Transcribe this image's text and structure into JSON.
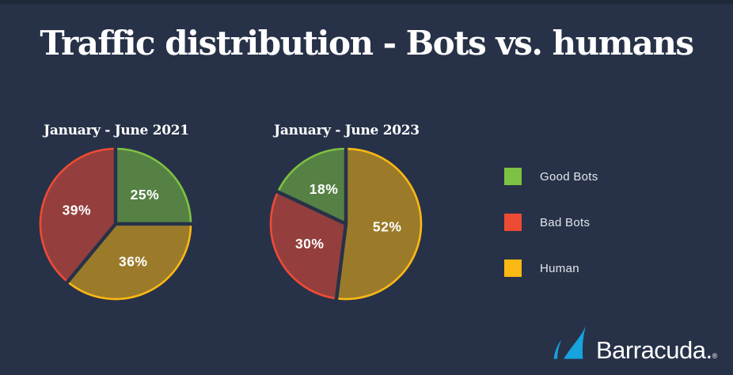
{
  "page": {
    "background": "#273248",
    "top_strip_color": "#1d2839",
    "title_color": "#ffffff"
  },
  "title": "Traffic distribution - Bots vs. humans",
  "chart_data": [
    {
      "type": "pie",
      "title": "January - June 2021",
      "unit": "percent",
      "start_angle_deg": 0,
      "direction": "clockwise",
      "slices": [
        {
          "label": "Good Bots",
          "value": 25,
          "display": "25%"
        },
        {
          "label": "Human",
          "value": 36,
          "display": "36%"
        },
        {
          "label": "Bad Bots",
          "value": 39,
          "display": "39%"
        }
      ]
    },
    {
      "type": "pie",
      "title": "January - June 2023",
      "unit": "percent",
      "start_angle_deg": 0,
      "direction": "clockwise",
      "slices": [
        {
          "label": "Human",
          "value": 52,
          "display": "52%"
        },
        {
          "label": "Bad Bots",
          "value": 30,
          "display": "30%"
        },
        {
          "label": "Good Bots",
          "value": 18,
          "display": "18%"
        }
      ]
    }
  ],
  "legend": {
    "position": "right",
    "items": [
      {
        "label": "Good Bots",
        "color": "#7dc242"
      },
      {
        "label": "Bad Bots",
        "color": "#ee4b35"
      },
      {
        "label": "Human",
        "color": "#fcb813"
      }
    ]
  },
  "pie_style": {
    "fill_opacity": 0.55,
    "rim_width": 2.6,
    "separator_width": 4.5,
    "label_color": "#ffffff"
  },
  "logo": {
    "brand": "Barracuda.",
    "registered": "®",
    "icon_color": "#17a3de"
  }
}
